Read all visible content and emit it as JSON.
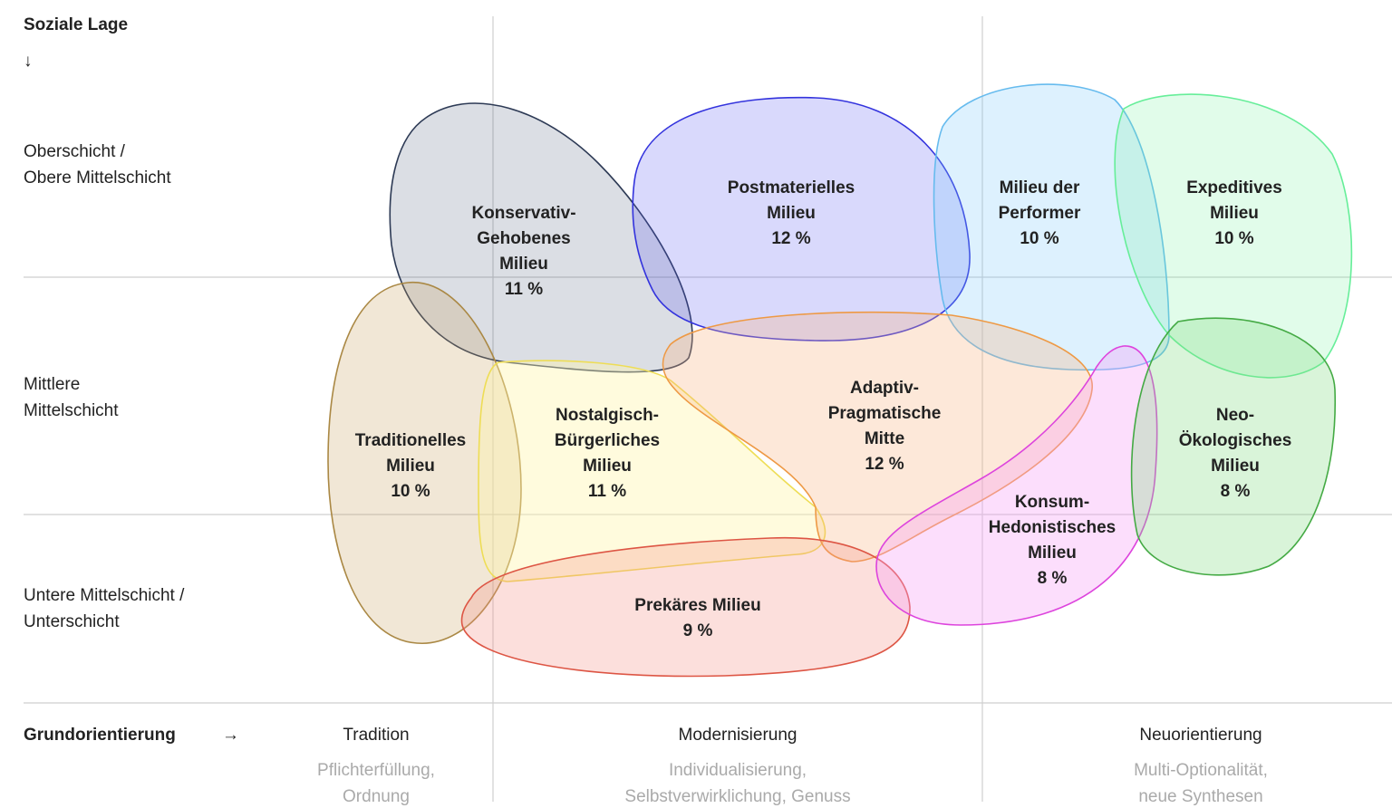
{
  "y_axis": {
    "title": "Soziale Lage",
    "arrow": "↓",
    "levels": [
      [
        "Oberschicht /",
        "Obere Mittelschicht"
      ],
      [
        "Mittlere",
        "Mittelschicht"
      ],
      [
        "Untere Mittelschicht /",
        "Unterschicht"
      ]
    ]
  },
  "x_axis": {
    "title": "Grundorientierung",
    "arrow": "→",
    "groups": [
      {
        "label": "Tradition",
        "description": [
          "Pflichterfüllung,",
          "Ordnung"
        ]
      },
      {
        "label": "Modernisierung",
        "description": [
          "Individualisierung,",
          "Selbstverwirklichung, Genuss"
        ]
      },
      {
        "label": "Neuorientierung",
        "description": [
          "Multi-Optionalität,",
          "neue Synthesen"
        ]
      }
    ]
  },
  "milieus": [
    {
      "label": [
        "Konservativ-",
        "Gehobenes",
        "Milieu"
      ],
      "share": "11 %"
    },
    {
      "label": [
        "Postmaterielles",
        "Milieu"
      ],
      "share": "12 %"
    },
    {
      "label": [
        "Milieu der",
        "Performer"
      ],
      "share": "10 %"
    },
    {
      "label": [
        "Expeditives",
        "Milieu"
      ],
      "share": "10 %"
    },
    {
      "label": [
        "Traditionelles",
        "Milieu"
      ],
      "share": "10 %"
    },
    {
      "label": [
        "Nostalgisch-",
        "Bürgerliches",
        "Milieu"
      ],
      "share": "11 %"
    },
    {
      "label": [
        "Adaptiv-",
        "Pragmatische",
        "Mitte"
      ],
      "share": "12 %"
    },
    {
      "label": [
        "Prekäres Milieu"
      ],
      "share": "9 %"
    },
    {
      "label": [
        "Konsum-",
        "Hedonistisches",
        "Milieu"
      ],
      "share": "8 %"
    },
    {
      "label": [
        "Neo-",
        "Ökologisches",
        "Milieu"
      ],
      "share": "8 %"
    }
  ]
}
